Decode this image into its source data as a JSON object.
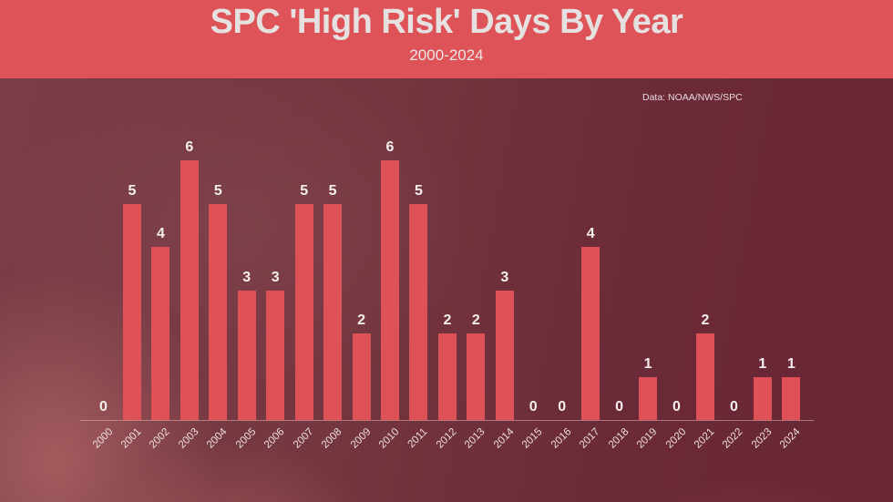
{
  "header": {
    "title": "SPC 'High Risk' Days By Year",
    "subtitle": "2000-2024"
  },
  "source_note": "Data: NOAA/NWS/SPC",
  "colors": {
    "header_bg": "#dd5357",
    "bar": "#de5257",
    "background": "#6e2d3a",
    "title_text": "#e6e1e1"
  },
  "chart_data": {
    "type": "bar",
    "title": "SPC 'High Risk' Days By Year",
    "subtitle": "2000-2024",
    "xlabel": "",
    "ylabel": "",
    "categories": [
      "2000",
      "2001",
      "2002",
      "2003",
      "2004",
      "2005",
      "2006",
      "2007",
      "2008",
      "2009",
      "2010",
      "2011",
      "2012",
      "2013",
      "2014",
      "2015",
      "2016",
      "2017",
      "2018",
      "2019",
      "2020",
      "2021",
      "2022",
      "2023",
      "2024"
    ],
    "values": [
      0,
      5,
      4,
      6,
      5,
      3,
      3,
      5,
      5,
      2,
      6,
      5,
      2,
      2,
      3,
      0,
      0,
      4,
      0,
      1,
      0,
      2,
      0,
      1,
      1
    ],
    "ylim": [
      0,
      6
    ],
    "grid": false,
    "legend": null,
    "data_labels": true,
    "annotations": [
      "Data: NOAA/NWS/SPC"
    ],
    "tick_label_rotation": -45
  }
}
